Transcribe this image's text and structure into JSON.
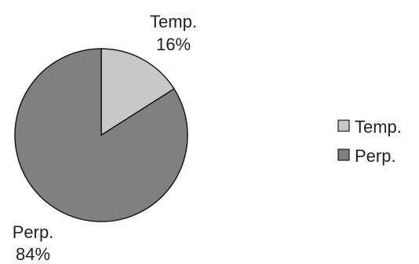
{
  "chart_data": {
    "type": "pie",
    "title": "",
    "slices": [
      {
        "label": "Temp.",
        "value": 16,
        "value_label": "16%",
        "color": "#c8c8c8"
      },
      {
        "label": "Perp.",
        "value": 84,
        "value_label": "84%",
        "color": "#808080"
      }
    ],
    "start_angle_deg": 0,
    "direction": "clockwise",
    "legend": {
      "position": "right",
      "entries": [
        "Temp.",
        "Perp."
      ]
    },
    "edge_color": "#1a1a1a"
  }
}
